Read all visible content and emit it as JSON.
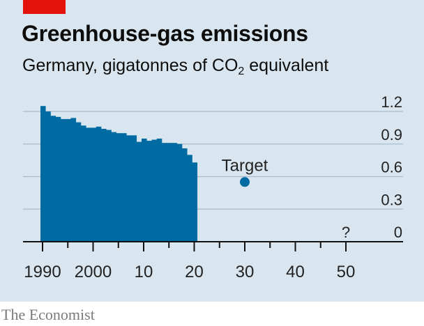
{
  "header": {
    "title": "Greenhouse-gas emissions",
    "subtitle_prefix": "Germany, gigatonnes of CO",
    "subtitle_sub": "2",
    "subtitle_suffix": " equivalent"
  },
  "source": "The Economist",
  "colors": {
    "bar": "#006ba2",
    "target": "#006ba2",
    "grid": "#a8bccc",
    "background": "#dae6ef",
    "brand_red": "#e3120b"
  },
  "chart_data": {
    "type": "bar",
    "x": [
      1990,
      1991,
      1992,
      1993,
      1994,
      1995,
      1996,
      1997,
      1998,
      1999,
      2000,
      2001,
      2002,
      2003,
      2004,
      2005,
      2006,
      2007,
      2008,
      2009,
      2010,
      2011,
      2012,
      2013,
      2014,
      2015,
      2016,
      2017,
      2018,
      2019,
      2020
    ],
    "values": [
      1.25,
      1.2,
      1.16,
      1.15,
      1.13,
      1.13,
      1.14,
      1.1,
      1.07,
      1.05,
      1.05,
      1.06,
      1.04,
      1.03,
      1.01,
      1.0,
      1.0,
      0.98,
      0.98,
      0.92,
      0.95,
      0.93,
      0.94,
      0.95,
      0.91,
      0.91,
      0.91,
      0.9,
      0.86,
      0.8,
      0.73
    ],
    "target": {
      "label": "Target",
      "x": 2030,
      "y": 0.55
    },
    "unknown_marker": {
      "label": "?",
      "x": 2050
    },
    "ylim": [
      0,
      1.2
    ],
    "xlim": [
      1990,
      2055
    ],
    "y_ticks": [
      "0",
      "0.3",
      "0.6",
      "0.9",
      "1.2"
    ],
    "y_tick_values": [
      0,
      0.3,
      0.6,
      0.9,
      1.2
    ],
    "x_tick_labels": [
      "1990",
      "2000",
      "10",
      "20",
      "30",
      "40",
      "50"
    ],
    "x_tick_label_years": [
      1990,
      2000,
      2010,
      2020,
      2030,
      2040,
      2050
    ],
    "x_minor_tick_years": [
      1995,
      2005,
      2015,
      2025,
      2035,
      2045
    ],
    "xlabel": "",
    "ylabel": "",
    "grid": true
  }
}
